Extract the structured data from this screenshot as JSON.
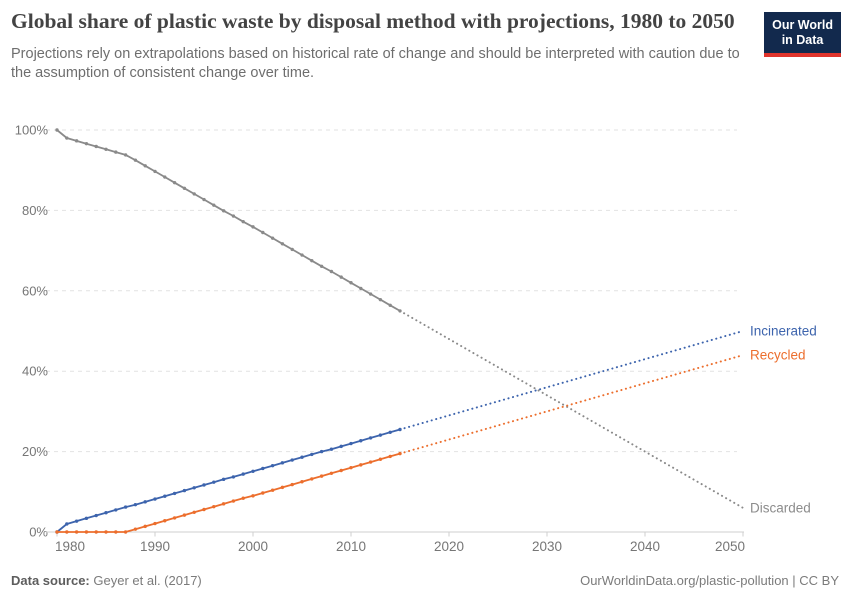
{
  "header": {
    "title": "Global share of plastic waste by disposal method with projections, 1980 to 2050",
    "subtitle": "Projections rely on extrapolations based on historical rate of change and should be interpreted with caution due to the assumption of consistent change over time.",
    "logo": {
      "line1": "Our World",
      "line2": "in Data",
      "bg_color": "#12294d",
      "stripe_color": "#e0342c"
    }
  },
  "footer": {
    "datasource_label": "Data source:",
    "datasource_value": "Geyer et al. (2017)",
    "credit": "OurWorldinData.org/plastic-pollution | CC BY"
  },
  "chart_data": {
    "type": "line",
    "title": "Global share of plastic waste by disposal method with projections, 1980 to 2050",
    "xlabel": "",
    "ylabel": "",
    "x_range": [
      1980,
      2050
    ],
    "y_range": [
      0,
      100
    ],
    "grid": "dashed-horizontal",
    "legend_position": "end-of-line-labels",
    "x_ticks": [
      1980,
      1990,
      2000,
      2010,
      2020,
      2030,
      2040,
      2050
    ],
    "y_ticks": [
      0,
      20,
      40,
      60,
      80,
      100
    ],
    "y_tick_suffix": "%",
    "historical_years": [
      1980,
      1981,
      1982,
      1983,
      1984,
      1985,
      1986,
      1987,
      1988,
      1989,
      1990,
      1991,
      1992,
      1993,
      1994,
      1995,
      1996,
      1997,
      1998,
      1999,
      2000,
      2001,
      2002,
      2003,
      2004,
      2005,
      2006,
      2007,
      2008,
      2009,
      2010,
      2011,
      2012,
      2013,
      2014,
      2015
    ],
    "series": [
      {
        "name": "Discarded",
        "color": "#8a8a8a",
        "label_color": "#8c8c8c",
        "historical_values": [
          100.0,
          98.0,
          97.3,
          96.6,
          95.9,
          95.2,
          94.5,
          93.8,
          92.5,
          91.1,
          89.7,
          88.3,
          86.9,
          85.5,
          84.1,
          82.7,
          81.3,
          79.9,
          78.6,
          77.2,
          75.9,
          74.5,
          73.1,
          71.7,
          70.3,
          68.9,
          67.5,
          66.1,
          64.8,
          63.4,
          62.0,
          60.6,
          59.2,
          57.8,
          56.4,
          55.0
        ],
        "projection": {
          "years": [
            2015,
            2050
          ],
          "values": [
            55.0,
            6.0
          ]
        }
      },
      {
        "name": "Incinerated",
        "color": "#3d64ad",
        "label_color": "#3d64ad",
        "historical_values": [
          0.0,
          2.0,
          2.7,
          3.4,
          4.1,
          4.8,
          5.5,
          6.2,
          6.8,
          7.5,
          8.2,
          8.9,
          9.6,
          10.3,
          11.0,
          11.7,
          12.4,
          13.1,
          13.7,
          14.4,
          15.1,
          15.8,
          16.5,
          17.2,
          17.9,
          18.6,
          19.3,
          20.0,
          20.6,
          21.3,
          22.0,
          22.7,
          23.4,
          24.1,
          24.8,
          25.5
        ],
        "projection": {
          "years": [
            2015,
            2050
          ],
          "values": [
            25.5,
            50.0
          ]
        }
      },
      {
        "name": "Recycled",
        "color": "#ec6e2d",
        "label_color": "#ec6e2d",
        "historical_values": [
          0.0,
          0.0,
          0.0,
          0.0,
          0.0,
          0.0,
          0.0,
          0.0,
          0.7,
          1.4,
          2.1,
          2.8,
          3.5,
          4.2,
          4.9,
          5.6,
          6.3,
          7.0,
          7.7,
          8.4,
          9.0,
          9.7,
          10.4,
          11.1,
          11.8,
          12.5,
          13.2,
          13.9,
          14.6,
          15.3,
          16.0,
          16.7,
          17.4,
          18.1,
          18.8,
          19.5
        ],
        "projection": {
          "years": [
            2015,
            2050
          ],
          "values": [
            19.5,
            44.0
          ]
        }
      }
    ]
  }
}
